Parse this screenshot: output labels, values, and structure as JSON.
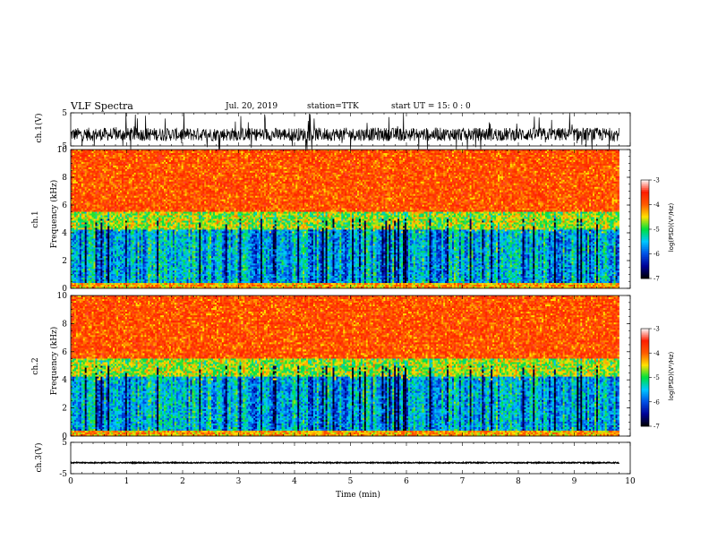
{
  "header": {
    "title": "VLF Spectra",
    "date": "Jul. 20, 2019",
    "station": "station=TTK",
    "start": "start UT =  15: 0 : 0"
  },
  "axes": {
    "xlabel": "Time  (min)",
    "ch1_ylabel": "ch.1(V)",
    "spec1_ylabel_top": "ch.1",
    "spec1_ylabel_bottom": "Frequency  (kHz)",
    "spec2_ylabel_top": "ch.2",
    "spec2_ylabel_bottom": "Frequency  (kHz)",
    "ch3_ylabel": "ch.3(V)",
    "colorbar_label": "log(PSD)(V²/Hz)"
  },
  "chart_data": [
    {
      "type": "line",
      "name": "ch.1 waveform",
      "ylabel": "ch.1(V)",
      "xlim": [
        0,
        10
      ],
      "ylim": [
        -5,
        5
      ],
      "yticks": [
        5,
        -5
      ],
      "x_end": 9.8,
      "baseline": -1.5,
      "amplitude_typical": 2
    },
    {
      "type": "heatmap",
      "name": "ch.1 spectrogram",
      "ylabel": "Frequency  (kHz)",
      "xlim": [
        0,
        10
      ],
      "ylim": [
        0,
        10
      ],
      "yticks": [
        0,
        2,
        4,
        6,
        8,
        10
      ],
      "x_end": 9.8,
      "z_label": "log(PSD)(V²/Hz)",
      "z_range": [
        -7,
        -3
      ],
      "z_ticks": [
        -3,
        -4,
        -5,
        -6,
        -7
      ],
      "colormap": [
        "#ffffff",
        "#ff1a00",
        "#ffe000",
        "#00e040",
        "#00c8ff",
        "#0000b0",
        "#000000"
      ]
    },
    {
      "type": "heatmap",
      "name": "ch.2 spectrogram",
      "ylabel": "Frequency  (kHz)",
      "xlim": [
        0,
        10
      ],
      "ylim": [
        0,
        10
      ],
      "yticks": [
        0,
        2,
        4,
        6,
        8,
        10
      ],
      "x_end": 9.8,
      "z_label": "log(PSD)(V²/Hz)",
      "z_range": [
        -7,
        -3
      ],
      "z_ticks": [
        -3,
        -4,
        -5,
        -6,
        -7
      ],
      "colormap": [
        "#ffffff",
        "#ff1a00",
        "#ffe000",
        "#00e040",
        "#00c8ff",
        "#0000b0",
        "#000000"
      ]
    },
    {
      "type": "line",
      "name": "ch.3 waveform",
      "ylabel": "ch.3(V)",
      "xlim": [
        0,
        10
      ],
      "ylim": [
        -5,
        5
      ],
      "yticks": [
        5,
        -5
      ],
      "x_end": 9.8,
      "baseline": -1.5,
      "amplitude_typical": 0.15
    }
  ],
  "xticks": [
    "0",
    "1",
    "2",
    "3",
    "4",
    "5",
    "6",
    "7",
    "8",
    "9",
    "10"
  ]
}
